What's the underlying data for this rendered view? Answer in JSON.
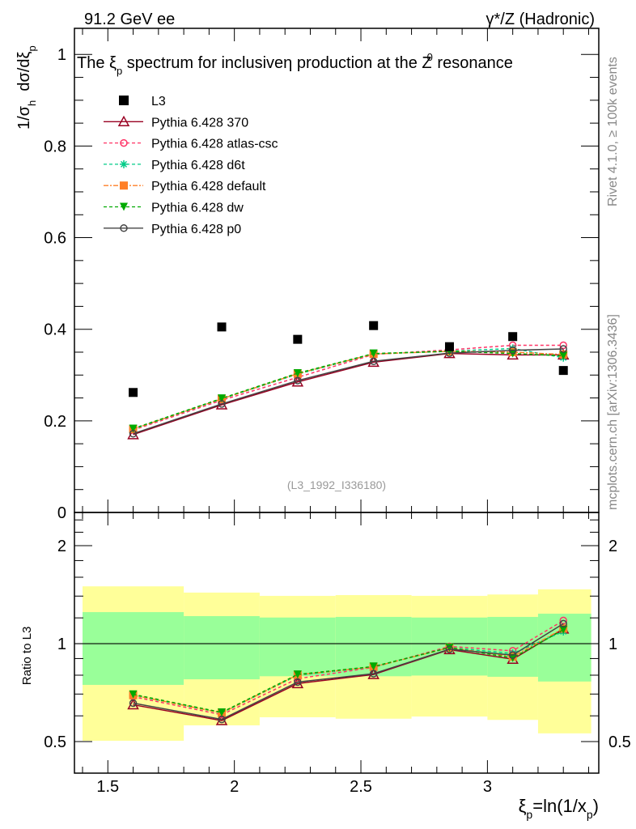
{
  "header": {
    "left": "91.2 GeV ee",
    "right": "γ*/Z (Hadronic)"
  },
  "title_parts": [
    "The ξ",
    "p",
    " spectrum for inclusiveη production at the Z",
    "0",
    " resonance"
  ],
  "side_labels": {
    "rivet": "Rivet 4.1.0, ≥ 100k events",
    "mcplots": "mcplots.cern.ch [arXiv:1306.3436]"
  },
  "watermark": "(L3_1992_I336180)",
  "ylabel_parts": [
    "1/σ",
    "h",
    "  dσ/dξ",
    "p"
  ],
  "xlabel_parts": [
    "ξ",
    "p",
    "=ln(1/x",
    "p",
    ")"
  ],
  "ratio_ylabel": "Ratio to L3",
  "chart_data": {
    "type": "scatter",
    "xlim": [
      1.368,
      3.44
    ],
    "ylim": [
      0,
      1.057
    ],
    "ratio_ylim": [
      0.4,
      2.53
    ],
    "ratio_scale": "log",
    "x_ticks": [
      "1.5",
      "2",
      "2.5",
      "3"
    ],
    "y_ticks": [
      "0",
      "0.2",
      "0.4",
      "0.6",
      "0.8",
      "1"
    ],
    "ratio_ticks": [
      "0.5",
      "1",
      "2"
    ],
    "legend_position": "top-left",
    "x": [
      1.6,
      1.95,
      2.25,
      2.55,
      2.85,
      3.1,
      3.3
    ],
    "bin_edges": [
      1.4,
      1.8,
      2.1,
      2.4,
      2.7,
      3.0,
      3.2,
      3.41
    ],
    "data": {
      "name": "L3",
      "color": "#000000",
      "marker": "square",
      "values": [
        0.262,
        0.405,
        0.378,
        0.408,
        0.362,
        0.384,
        0.31
      ]
    },
    "ratio_bands": {
      "stat_color": "#99ff99",
      "total_color": "#ffff99",
      "stat_upper": [
        1.25,
        1.215,
        1.203,
        1.208,
        1.203,
        1.208,
        1.236
      ],
      "stat_lower": [
        0.747,
        0.777,
        0.794,
        0.794,
        0.798,
        0.791,
        0.765
      ],
      "total_upper": [
        1.5,
        1.435,
        1.402,
        1.41,
        1.402,
        1.416,
        1.468
      ],
      "total_lower": [
        0.503,
        0.561,
        0.594,
        0.588,
        0.597,
        0.583,
        0.53
      ]
    },
    "series": [
      {
        "name": "Pythia 6.428 370",
        "color": "#990022",
        "dash": "",
        "marker": "triangle-open",
        "values": [
          0.17,
          0.235,
          0.285,
          0.328,
          0.347,
          0.344,
          0.344
        ]
      },
      {
        "name": "Pythia 6.428 atlas-csc",
        "color": "#ff3366",
        "dash": "4,3",
        "marker": "circle-open",
        "values": [
          0.18,
          0.245,
          0.295,
          0.345,
          0.355,
          0.365,
          0.365
        ]
      },
      {
        "name": "Pythia 6.428 d6t",
        "color": "#00cc88",
        "dash": "4,3",
        "marker": "star",
        "values": [
          0.182,
          0.248,
          0.302,
          0.346,
          0.352,
          0.358,
          0.338
        ]
      },
      {
        "name": "Pythia 6.428 default",
        "color": "#ff7f27",
        "dash": "6,2,2,2",
        "marker": "square",
        "values": [
          0.182,
          0.248,
          0.303,
          0.346,
          0.352,
          0.35,
          0.345
        ]
      },
      {
        "name": "Pythia 6.428 dw",
        "color": "#00aa00",
        "dash": "4,3",
        "marker": "triangle-down",
        "values": [
          0.183,
          0.249,
          0.304,
          0.347,
          0.352,
          0.347,
          0.342
        ]
      },
      {
        "name": "Pythia 6.428 p0",
        "color": "#444444",
        "dash": "",
        "marker": "circle-open",
        "values": [
          0.172,
          0.237,
          0.288,
          0.33,
          0.348,
          0.354,
          0.357
        ]
      }
    ]
  }
}
